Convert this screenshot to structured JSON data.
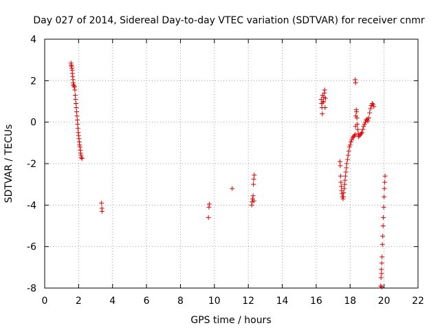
{
  "chart_data": {
    "type": "scatter",
    "title": "Day 027 of 2014, Sidereal Day-to-day VTEC variation (SDTVAR) for receiver cnmr",
    "xlabel": "GPS time / hours",
    "ylabel": "SDTVAR / TECUs",
    "xlim": [
      0,
      22
    ],
    "ylim": [
      -8,
      4
    ],
    "xticks": [
      0,
      2,
      4,
      6,
      8,
      10,
      12,
      14,
      16,
      18,
      20,
      22
    ],
    "yticks": [
      -8,
      -6,
      -4,
      -2,
      0,
      2,
      4
    ],
    "grid": true,
    "marker": "plus",
    "color": "#dd0000",
    "series": [
      {
        "name": "cnmr",
        "points": [
          [
            1.55,
            2.85
          ],
          [
            1.57,
            2.75
          ],
          [
            1.58,
            2.7
          ],
          [
            1.6,
            2.6
          ],
          [
            1.62,
            2.5
          ],
          [
            1.63,
            2.35
          ],
          [
            1.65,
            2.2
          ],
          [
            1.67,
            2.05
          ],
          [
            1.68,
            1.9
          ],
          [
            1.7,
            1.8
          ],
          [
            1.72,
            1.75
          ],
          [
            1.75,
            1.7
          ],
          [
            1.78,
            1.55
          ],
          [
            1.8,
            1.3
          ],
          [
            1.82,
            1.1
          ],
          [
            1.84,
            0.9
          ],
          [
            1.86,
            0.7
          ],
          [
            1.88,
            0.5
          ],
          [
            1.9,
            0.3
          ],
          [
            1.92,
            0.1
          ],
          [
            1.94,
            -0.1
          ],
          [
            1.96,
            -0.3
          ],
          [
            1.98,
            -0.5
          ],
          [
            2.0,
            -0.65
          ],
          [
            2.02,
            -0.8
          ],
          [
            2.04,
            -0.95
          ],
          [
            2.06,
            -1.1
          ],
          [
            2.08,
            -1.2
          ],
          [
            2.1,
            -1.35
          ],
          [
            2.12,
            -1.5
          ],
          [
            2.14,
            -1.6
          ],
          [
            2.16,
            -1.7
          ],
          [
            2.2,
            -1.75
          ],
          [
            3.35,
            -3.9
          ],
          [
            3.37,
            -4.15
          ],
          [
            3.38,
            -4.3
          ],
          [
            9.65,
            -4.6
          ],
          [
            9.68,
            -4.1
          ],
          [
            9.7,
            -3.95
          ],
          [
            11.05,
            -3.2
          ],
          [
            12.2,
            -4.0
          ],
          [
            12.22,
            -3.85
          ],
          [
            12.25,
            -3.7
          ],
          [
            12.28,
            -3.55
          ],
          [
            12.3,
            -3.0
          ],
          [
            12.32,
            -2.75
          ],
          [
            12.35,
            -2.55
          ],
          [
            12.33,
            -3.8
          ],
          [
            16.3,
            1.1
          ],
          [
            16.32,
            0.9
          ],
          [
            16.34,
            0.7
          ],
          [
            16.36,
            0.4
          ],
          [
            16.38,
            1.3
          ],
          [
            16.4,
            0.95
          ],
          [
            16.42,
            1.0
          ],
          [
            16.45,
            1.2
          ],
          [
            16.48,
            1.4
          ],
          [
            16.5,
            1.55
          ],
          [
            16.52,
            0.7
          ],
          [
            16.55,
            1.15
          ],
          [
            17.4,
            -1.9
          ],
          [
            17.42,
            -2.1
          ],
          [
            17.44,
            -2.6
          ],
          [
            17.46,
            -2.9
          ],
          [
            17.48,
            -3.1
          ],
          [
            17.5,
            -3.3
          ],
          [
            17.52,
            -3.45
          ],
          [
            17.55,
            -3.6
          ],
          [
            17.58,
            -3.7
          ],
          [
            17.6,
            -3.6
          ],
          [
            17.62,
            -3.4
          ],
          [
            17.65,
            -3.2
          ],
          [
            17.68,
            -3.0
          ],
          [
            17.7,
            -2.8
          ],
          [
            17.72,
            -2.6
          ],
          [
            17.75,
            -2.4
          ],
          [
            17.78,
            -2.2
          ],
          [
            17.8,
            -2.0
          ],
          [
            17.85,
            -1.8
          ],
          [
            17.88,
            -1.6
          ],
          [
            17.92,
            -1.4
          ],
          [
            17.96,
            -1.2
          ],
          [
            18.0,
            -1.1
          ],
          [
            18.05,
            -0.95
          ],
          [
            18.1,
            -0.85
          ],
          [
            18.15,
            -0.75
          ],
          [
            18.2,
            -0.7
          ],
          [
            18.25,
            -0.65
          ],
          [
            18.3,
            -0.6
          ],
          [
            18.32,
            -0.2
          ],
          [
            18.34,
            0.3
          ],
          [
            18.36,
            0.6
          ],
          [
            18.38,
            0.5
          ],
          [
            18.4,
            0.2
          ],
          [
            18.42,
            -0.1
          ],
          [
            18.45,
            -0.35
          ],
          [
            18.48,
            -0.55
          ],
          [
            18.5,
            -0.7
          ],
          [
            18.55,
            -0.65
          ],
          [
            18.6,
            -0.6
          ],
          [
            18.65,
            -0.55
          ],
          [
            18.7,
            -0.5
          ],
          [
            18.75,
            -0.35
          ],
          [
            18.8,
            -0.2
          ],
          [
            18.85,
            -0.1
          ],
          [
            18.9,
            0.0
          ],
          [
            18.95,
            0.1
          ],
          [
            19.0,
            0.15
          ],
          [
            19.05,
            0.05
          ],
          [
            19.1,
            0.2
          ],
          [
            19.15,
            0.45
          ],
          [
            19.2,
            0.65
          ],
          [
            19.25,
            0.8
          ],
          [
            19.3,
            0.9
          ],
          [
            19.35,
            0.85
          ],
          [
            19.4,
            0.75
          ],
          [
            18.3,
            2.05
          ],
          [
            18.32,
            1.9
          ],
          [
            19.8,
            -7.9
          ],
          [
            19.82,
            -7.5
          ],
          [
            19.84,
            -7.1
          ],
          [
            19.86,
            -6.8
          ],
          [
            19.88,
            -6.5
          ],
          [
            19.9,
            -5.9
          ],
          [
            19.92,
            -5.5
          ],
          [
            19.94,
            -5.0
          ],
          [
            19.96,
            -4.6
          ],
          [
            19.98,
            -4.1
          ],
          [
            20.0,
            -3.6
          ],
          [
            20.02,
            -3.2
          ],
          [
            20.04,
            -2.9
          ],
          [
            20.06,
            -2.6
          ],
          [
            19.87,
            -7.95
          ],
          [
            19.85,
            -7.3
          ]
        ]
      }
    ]
  }
}
